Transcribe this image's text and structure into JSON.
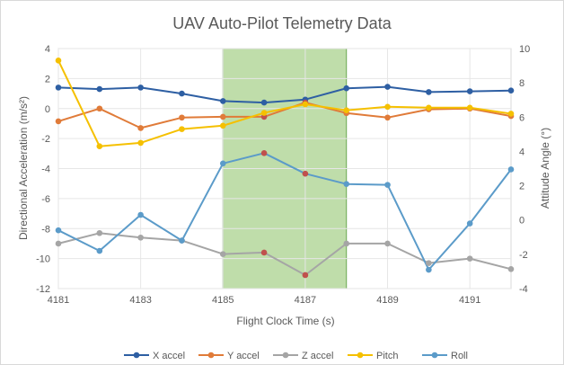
{
  "chart_data": {
    "type": "line",
    "title": "UAV Auto-Pilot Telemetry Data",
    "xlabel": "Flight Clock Time (s)",
    "ylabel_left": "Directional Acceleration (m/s²)",
    "ylabel_right": "Attitude Angle (°)",
    "x": [
      4181,
      4182,
      4183,
      4184,
      4185,
      4186,
      4187,
      4188,
      4189,
      4190,
      4191,
      4192
    ],
    "xlim": [
      4181,
      4192
    ],
    "x_ticks": [
      4181,
      4183,
      4185,
      4187,
      4189,
      4191
    ],
    "ylim_left": [
      -12,
      4
    ],
    "y_ticks_left": [
      -12,
      -10,
      -8,
      -6,
      -4,
      -2,
      0,
      2,
      4
    ],
    "ylim_right": [
      -4,
      10
    ],
    "y_ticks_right": [
      -4,
      -2,
      0,
      2,
      4,
      6,
      8,
      10
    ],
    "grid": true,
    "legend_position": "bottom",
    "highlight_region": {
      "x_start": 4185,
      "x_end": 4188,
      "color": "#a9d18e"
    },
    "highlight_marker_color": "#c0504d",
    "series": [
      {
        "name": "X accel",
        "axis": "left",
        "color": "#2e5fa3",
        "values": [
          1.4,
          1.3,
          1.4,
          1.0,
          0.5,
          0.4,
          0.6,
          1.35,
          1.45,
          1.1,
          1.15,
          1.2
        ]
      },
      {
        "name": "Y accel",
        "axis": "left",
        "color": "#e07b39",
        "values": [
          -0.85,
          0.0,
          -1.3,
          -0.6,
          -0.55,
          -0.55,
          0.4,
          -0.3,
          -0.6,
          -0.05,
          0.0,
          -0.5
        ],
        "highlight_index": [
          5,
          6
        ]
      },
      {
        "name": "Z accel",
        "axis": "left",
        "color": "#a5a5a5",
        "values": [
          -9.0,
          -8.3,
          -8.6,
          -8.8,
          -9.7,
          -9.6,
          -11.1,
          -9.0,
          -9.0,
          -10.3,
          -10.0,
          -10.7
        ],
        "highlight_index": [
          5,
          6
        ]
      },
      {
        "name": "Pitch",
        "axis": "right",
        "color": "#f5c000",
        "values": [
          9.3,
          4.3,
          4.5,
          5.3,
          5.5,
          6.25,
          6.75,
          6.4,
          6.6,
          6.55,
          6.55,
          6.2
        ]
      },
      {
        "name": "Roll",
        "axis": "right",
        "color": "#5b9bc9",
        "values": [
          -0.6,
          -1.8,
          0.3,
          -1.2,
          3.3,
          3.9,
          2.7,
          2.1,
          2.05,
          -2.9,
          -0.2,
          2.95
        ],
        "highlight_index": [
          5,
          6
        ]
      }
    ]
  }
}
